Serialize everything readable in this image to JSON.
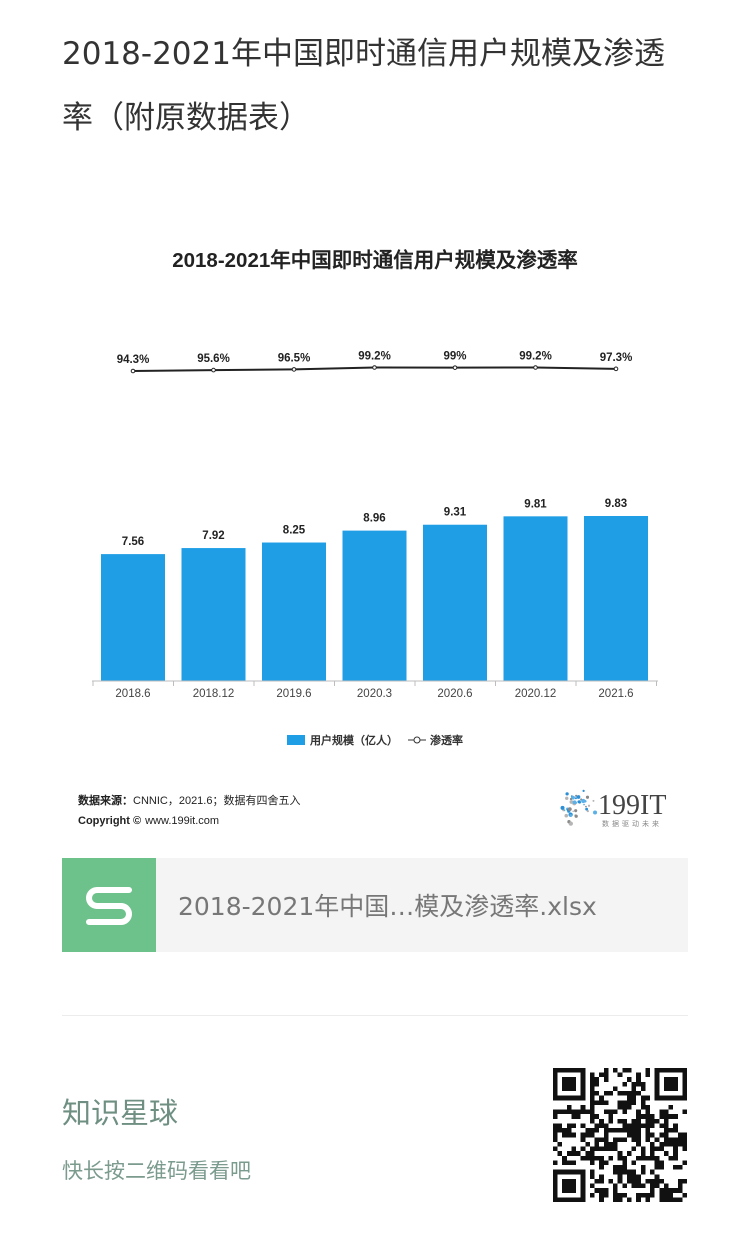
{
  "article": {
    "title": "2018-2021年中国即时通信用户规模及渗透率（附原数据表）"
  },
  "chart_data": {
    "type": "bar",
    "title": "2018-2021年中国即时通信用户规模及渗透率",
    "categories": [
      "2018.6",
      "2018.12",
      "2019.6",
      "2020.3",
      "2020.6",
      "2020.12",
      "2021.6"
    ],
    "series": [
      {
        "name": "用户规模（亿人）",
        "type": "bar",
        "values": [
          7.56,
          7.92,
          8.25,
          8.96,
          9.31,
          9.81,
          9.83
        ],
        "labels": [
          "7.56",
          "7.92",
          "8.25",
          "8.96",
          "9.31",
          "9.81",
          "9.83"
        ],
        "color": "#1f9ee6"
      },
      {
        "name": "渗透率",
        "type": "line",
        "values": [
          94.3,
          95.6,
          96.5,
          99.2,
          99.0,
          99.2,
          97.3
        ],
        "labels": [
          "94.3%",
          "95.6%",
          "96.5%",
          "99.2%",
          "99%",
          "99.2%",
          "97.3%"
        ],
        "color": "#222222"
      }
    ],
    "legend": {
      "bar_label": "用户规模（亿人）",
      "line_label": "渗透率",
      "position": "bottom"
    },
    "grid": false
  },
  "chart_footer": {
    "source_label": "数据来源：",
    "source_text": "CNNIC，2021.6；数据有四舍五入",
    "copyright_label": "Copyright ©",
    "copyright_text": "www.199it.com",
    "logo_text": "199IT",
    "logo_tagline": "数据驱动未来"
  },
  "file_card": {
    "icon": "spreadsheet-s-icon",
    "name": "2018-2021年中国…模及渗透率.xlsx",
    "icon_color": "#6dc18b"
  },
  "promo": {
    "title": "知识星球",
    "subtitle": "快长按二维码看看吧",
    "qr_icon": "qr-code-icon"
  }
}
